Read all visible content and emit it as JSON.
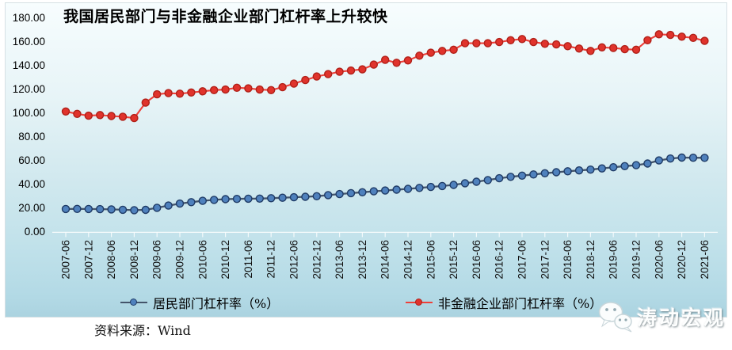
{
  "chart": {
    "title": "我国居民部门与非金融企业部门杠杆率上升较快",
    "source_label": "资料来源：Wind",
    "watermark_text": "涛动宏观",
    "background_top_color": "#f7fdfe",
    "background_bottom_color": "#abd3e0"
  },
  "chart_data": {
    "type": "line",
    "title": "我国居民部门与非金融企业部门杠杆率上升较快",
    "xlabel": "",
    "ylabel": "",
    "ylim": [
      0,
      180
    ],
    "ytick_step": 20,
    "ytick_labels": [
      "0.00",
      "20.00",
      "40.00",
      "60.00",
      "80.00",
      "100.00",
      "120.00",
      "140.00",
      "160.00",
      "180.00"
    ],
    "grid": false,
    "legend_position": "bottom",
    "x": [
      "2007-06",
      "2007-09",
      "2007-12",
      "2008-03",
      "2008-06",
      "2008-09",
      "2008-12",
      "2009-03",
      "2009-06",
      "2009-09",
      "2009-12",
      "2010-03",
      "2010-06",
      "2010-09",
      "2010-12",
      "2011-03",
      "2011-06",
      "2011-09",
      "2011-12",
      "2012-03",
      "2012-06",
      "2012-09",
      "2012-12",
      "2013-03",
      "2013-06",
      "2013-09",
      "2013-12",
      "2014-03",
      "2014-06",
      "2014-09",
      "2014-12",
      "2015-03",
      "2015-06",
      "2015-09",
      "2015-12",
      "2016-03",
      "2016-06",
      "2016-09",
      "2016-12",
      "2017-03",
      "2017-06",
      "2017-09",
      "2017-12",
      "2018-03",
      "2018-06",
      "2018-09",
      "2018-12",
      "2019-03",
      "2019-06",
      "2019-09",
      "2019-12",
      "2020-03",
      "2020-06",
      "2020-09",
      "2020-12",
      "2021-03",
      "2021-06"
    ],
    "xtick_every": 2,
    "xtick_labels_shown": [
      "2007-06",
      "2007-12",
      "2008-06",
      "2008-12",
      "2009-06",
      "2009-12",
      "2010-06",
      "2010-12",
      "2011-06",
      "2011-12",
      "2012-06",
      "2012-12",
      "2013-06",
      "2013-12",
      "2014-06",
      "2014-12",
      "2015-06",
      "2015-12",
      "2016-06",
      "2016-12",
      "2017-06",
      "2017-12",
      "2018-06",
      "2018-12",
      "2019-06",
      "2019-12",
      "2020-06",
      "2020-12",
      "2021-06"
    ],
    "series": [
      {
        "name": "居民部门杠杆率（%）",
        "line_color": "#44546a",
        "marker_fill": "#4f81bd",
        "marker_stroke": "#1f3b66",
        "values": [
          18.9,
          19.0,
          18.9,
          18.8,
          18.6,
          18.3,
          17.9,
          18.2,
          19.9,
          21.8,
          23.5,
          24.7,
          25.8,
          26.6,
          27.2,
          27.4,
          27.6,
          27.7,
          28.0,
          28.4,
          28.8,
          29.2,
          29.7,
          30.6,
          31.5,
          32.3,
          33.0,
          33.8,
          34.5,
          35.2,
          35.9,
          36.7,
          37.5,
          38.3,
          39.2,
          40.6,
          41.9,
          43.3,
          44.8,
          46.0,
          47.0,
          48.0,
          49.0,
          49.9,
          50.7,
          51.4,
          52.1,
          53.1,
          54.1,
          55.0,
          55.8,
          57.2,
          59.8,
          61.4,
          62.2,
          62.1,
          62.0
        ]
      },
      {
        "name": "非金融企业部门杠杆率（%）",
        "line_color": "#ee403a",
        "marker_fill": "#e0332c",
        "marker_stroke": "#b02018",
        "values": [
          101.0,
          99.0,
          97.5,
          98.0,
          97.2,
          96.6,
          95.5,
          108.5,
          115.5,
          116.5,
          116.0,
          117.0,
          118.0,
          119.0,
          119.5,
          121.0,
          120.5,
          119.5,
          119.0,
          121.5,
          124.5,
          127.5,
          130.5,
          132.5,
          134.5,
          135.5,
          136.5,
          140.5,
          144.5,
          142.0,
          144.0,
          148.0,
          150.5,
          152.0,
          153.0,
          158.5,
          158.5,
          158.5,
          159.5,
          161.0,
          162.0,
          159.5,
          158.0,
          157.5,
          156.0,
          154.0,
          152.0,
          155.0,
          154.5,
          153.5,
          153.0,
          161.0,
          166.0,
          165.5,
          164.0,
          163.0,
          160.5
        ]
      }
    ]
  }
}
